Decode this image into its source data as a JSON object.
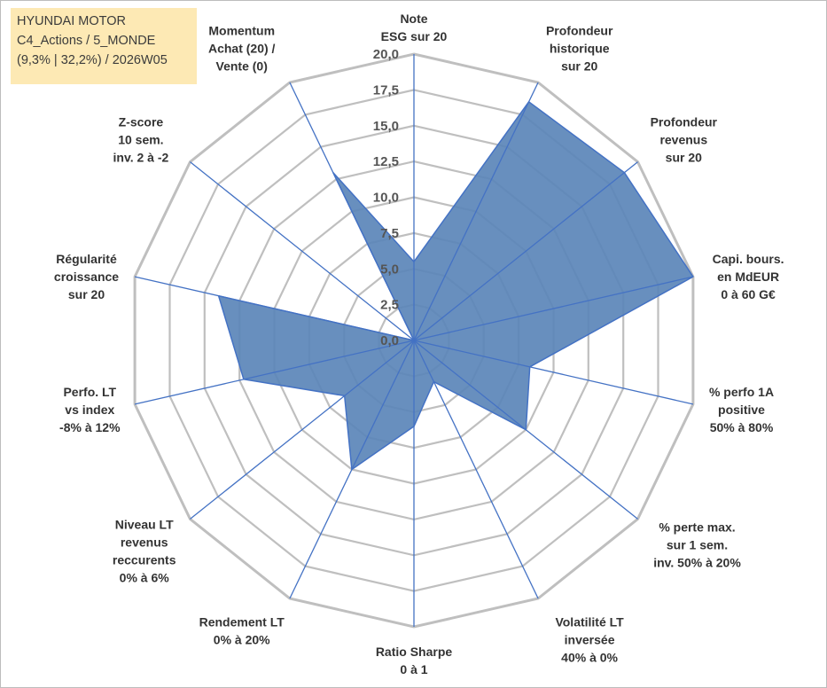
{
  "info_box": {
    "line1": "HYUNDAI MOTOR",
    "line2": "C4_Actions / 5_MONDE",
    "line3": "(9,3% | 32,2%) / 2026W05"
  },
  "chart_data": {
    "type": "radar",
    "scale": {
      "min": 0,
      "max": 20,
      "step": 2.5
    },
    "tick_labels": [
      "0,0",
      "2,5",
      "5,0",
      "7,5",
      "10,0",
      "12,5",
      "15,0",
      "17,5",
      "20,0"
    ],
    "axes": [
      {
        "label": [
          "Note",
          "ESG sur 20"
        ],
        "value": 5.5
      },
      {
        "label": [
          "Profondeur",
          "historique",
          "sur 20"
        ],
        "value": 18.5
      },
      {
        "label": [
          "Profondeur",
          "revenus",
          "sur 20"
        ],
        "value": 18.8
      },
      {
        "label": [
          "Capi. bours.",
          "en MdEUR",
          "0 à 60 G€"
        ],
        "value": 20.0
      },
      {
        "label": [
          "% perfo 1A",
          "positive",
          "50% à 80%"
        ],
        "value": 8.3
      },
      {
        "label": [
          "% perte max.",
          "sur 1 sem.",
          "inv. 50% à 20%"
        ],
        "value": 10.0
      },
      {
        "label": [
          "Volatilité LT",
          "inversée",
          "40% à 0%"
        ],
        "value": 3.2
      },
      {
        "label": [
          "Ratio Sharpe",
          "0 à 1"
        ],
        "value": 6.0
      },
      {
        "label": [
          "Rendement LT",
          "0% à 20%"
        ],
        "value": 10.0
      },
      {
        "label": [
          "Niveau LT",
          "revenus",
          "reccurents",
          "0% à 6%"
        ],
        "value": 6.2
      },
      {
        "label": [
          "Perfo. LT",
          "vs index",
          "-8% à 12%"
        ],
        "value": 12.2
      },
      {
        "label": [
          "Régularité",
          "croissance",
          "sur 20"
        ],
        "value": 14.0
      },
      {
        "label": [
          "Z-score",
          "10 sem.",
          "inv. 2 à -2"
        ],
        "value": 0.0
      },
      {
        "label": [
          "Momentum",
          "Achat (20) /",
          "Vente (0)"
        ],
        "value": 13.0
      }
    ],
    "colors": {
      "fill": "#5b85b8",
      "stroke": "#4472c4",
      "axis": "#4472c4",
      "grid": "#bfbfbf"
    }
  }
}
